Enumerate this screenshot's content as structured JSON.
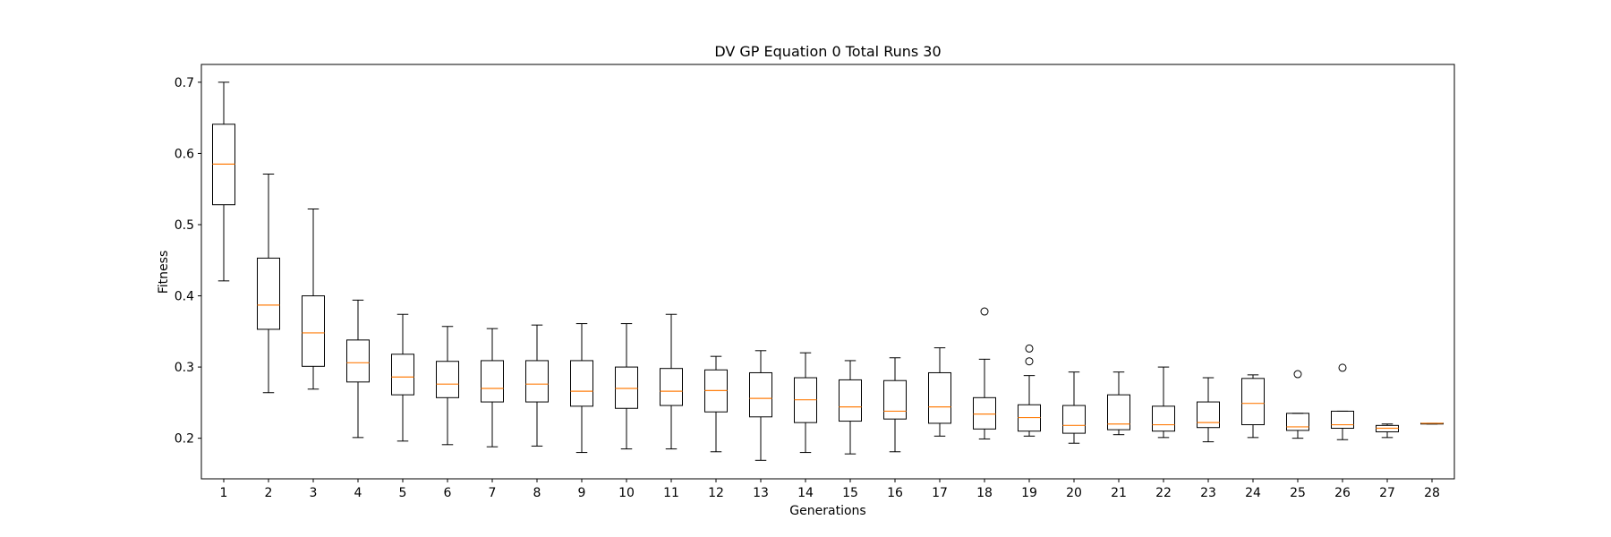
{
  "chart_data": {
    "type": "boxplot",
    "title": "DV GP Equation 0 Total Runs 30",
    "xlabel": "Generations",
    "ylabel": "Fitness",
    "ylim": [
      0.143,
      0.725
    ],
    "yticks": [
      "0.2",
      "0.3",
      "0.4",
      "0.5",
      "0.6",
      "0.7"
    ],
    "grid": false,
    "colors": {
      "box": "#000000",
      "median": "#ff7f0e",
      "outlier": "#000000"
    },
    "boxes": [
      {
        "label": "1",
        "whislo": 0.421,
        "q1": 0.528,
        "med": 0.585,
        "q3": 0.641,
        "whishi": 0.7,
        "fliers": []
      },
      {
        "label": "2",
        "whislo": 0.264,
        "q1": 0.353,
        "med": 0.387,
        "q3": 0.453,
        "whishi": 0.571,
        "fliers": []
      },
      {
        "label": "3",
        "whislo": 0.269,
        "q1": 0.301,
        "med": 0.348,
        "q3": 0.4,
        "whishi": 0.522,
        "fliers": []
      },
      {
        "label": "4",
        "whislo": 0.201,
        "q1": 0.279,
        "med": 0.306,
        "q3": 0.338,
        "whishi": 0.394,
        "fliers": []
      },
      {
        "label": "5",
        "whislo": 0.196,
        "q1": 0.261,
        "med": 0.286,
        "q3": 0.318,
        "whishi": 0.374,
        "fliers": []
      },
      {
        "label": "6",
        "whislo": 0.191,
        "q1": 0.257,
        "med": 0.276,
        "q3": 0.308,
        "whishi": 0.357,
        "fliers": []
      },
      {
        "label": "7",
        "whislo": 0.188,
        "q1": 0.251,
        "med": 0.27,
        "q3": 0.309,
        "whishi": 0.354,
        "fliers": []
      },
      {
        "label": "8",
        "whislo": 0.189,
        "q1": 0.251,
        "med": 0.276,
        "q3": 0.309,
        "whishi": 0.359,
        "fliers": []
      },
      {
        "label": "9",
        "whislo": 0.18,
        "q1": 0.245,
        "med": 0.266,
        "q3": 0.309,
        "whishi": 0.361,
        "fliers": []
      },
      {
        "label": "10",
        "whislo": 0.185,
        "q1": 0.242,
        "med": 0.27,
        "q3": 0.3,
        "whishi": 0.361,
        "fliers": []
      },
      {
        "label": "11",
        "whislo": 0.185,
        "q1": 0.246,
        "med": 0.266,
        "q3": 0.298,
        "whishi": 0.374,
        "fliers": []
      },
      {
        "label": "12",
        "whislo": 0.181,
        "q1": 0.237,
        "med": 0.267,
        "q3": 0.296,
        "whishi": 0.315,
        "fliers": []
      },
      {
        "label": "13",
        "whislo": 0.169,
        "q1": 0.23,
        "med": 0.256,
        "q3": 0.292,
        "whishi": 0.323,
        "fliers": []
      },
      {
        "label": "14",
        "whislo": 0.18,
        "q1": 0.222,
        "med": 0.254,
        "q3": 0.285,
        "whishi": 0.32,
        "fliers": []
      },
      {
        "label": "15",
        "whislo": 0.178,
        "q1": 0.224,
        "med": 0.244,
        "q3": 0.282,
        "whishi": 0.309,
        "fliers": []
      },
      {
        "label": "16",
        "whislo": 0.181,
        "q1": 0.227,
        "med": 0.238,
        "q3": 0.281,
        "whishi": 0.313,
        "fliers": []
      },
      {
        "label": "17",
        "whislo": 0.203,
        "q1": 0.221,
        "med": 0.244,
        "q3": 0.292,
        "whishi": 0.327,
        "fliers": []
      },
      {
        "label": "18",
        "whislo": 0.199,
        "q1": 0.213,
        "med": 0.234,
        "q3": 0.257,
        "whishi": 0.311,
        "fliers": [
          0.378
        ]
      },
      {
        "label": "19",
        "whislo": 0.203,
        "q1": 0.21,
        "med": 0.229,
        "q3": 0.247,
        "whishi": 0.288,
        "fliers": [
          0.308,
          0.326
        ]
      },
      {
        "label": "20",
        "whislo": 0.193,
        "q1": 0.207,
        "med": 0.218,
        "q3": 0.246,
        "whishi": 0.293,
        "fliers": []
      },
      {
        "label": "21",
        "whislo": 0.205,
        "q1": 0.212,
        "med": 0.22,
        "q3": 0.261,
        "whishi": 0.293,
        "fliers": []
      },
      {
        "label": "22",
        "whislo": 0.201,
        "q1": 0.21,
        "med": 0.219,
        "q3": 0.245,
        "whishi": 0.3,
        "fliers": []
      },
      {
        "label": "23",
        "whislo": 0.195,
        "q1": 0.215,
        "med": 0.222,
        "q3": 0.251,
        "whishi": 0.285,
        "fliers": []
      },
      {
        "label": "24",
        "whislo": 0.201,
        "q1": 0.219,
        "med": 0.249,
        "q3": 0.284,
        "whishi": 0.289,
        "fliers": []
      },
      {
        "label": "25",
        "whislo": 0.2,
        "q1": 0.211,
        "med": 0.216,
        "q3": 0.235,
        "whishi": 0.235,
        "fliers": [
          0.29
        ]
      },
      {
        "label": "26",
        "whislo": 0.198,
        "q1": 0.214,
        "med": 0.219,
        "q3": 0.238,
        "whishi": 0.238,
        "fliers": [
          0.299
        ]
      },
      {
        "label": "27",
        "whislo": 0.201,
        "q1": 0.209,
        "med": 0.214,
        "q3": 0.218,
        "whishi": 0.22,
        "fliers": []
      },
      {
        "label": "28",
        "whislo": 0.22,
        "q1": 0.22,
        "med": 0.221,
        "q3": 0.221,
        "whishi": 0.221,
        "fliers": []
      }
    ]
  }
}
